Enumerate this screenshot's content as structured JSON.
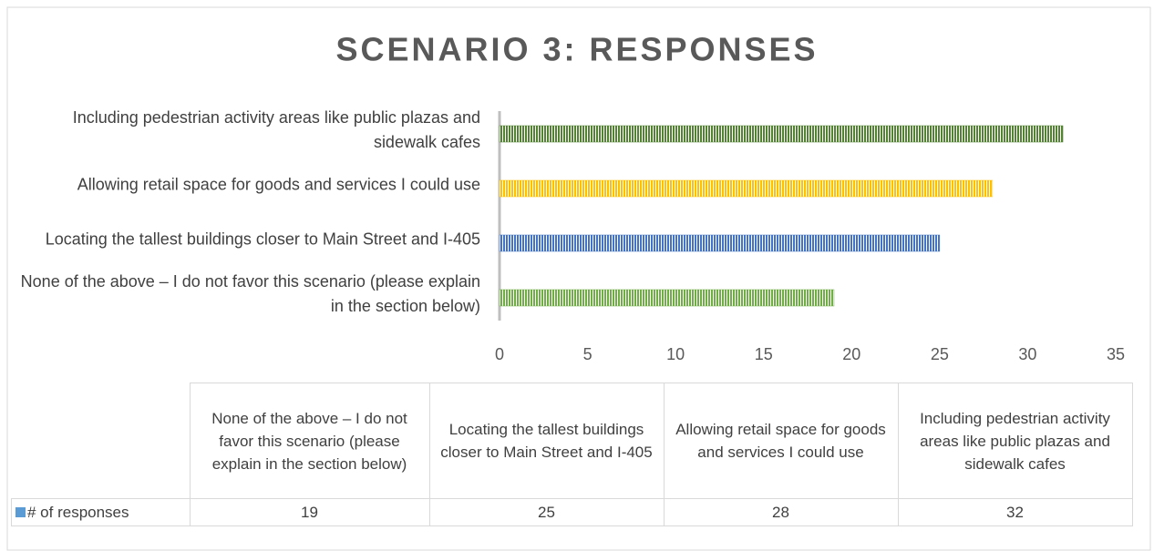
{
  "chart_data": {
    "type": "bar",
    "orientation": "horizontal",
    "title": "SCENARIO 3: RESPONSES",
    "categories": [
      "None of the above – I do not favor this scenario (please explain in the section below)",
      "Locating the tallest buildings closer to Main Street and I-405",
      "Allowing retail space for goods and services I could use",
      "Including pedestrian activity areas like public plazas and sidewalk cafes"
    ],
    "series": [
      {
        "name": "# of responses",
        "color": "#5b9bd5",
        "values": [
          19,
          25,
          28,
          32
        ]
      }
    ],
    "bar_colors": [
      "#70ad47",
      "#4472c4",
      "#ffc000",
      "#548235"
    ],
    "xlim": [
      0,
      35
    ],
    "xticks": [
      0,
      5,
      10,
      15,
      20,
      25,
      30,
      35
    ],
    "grid": false,
    "data_table": true
  }
}
